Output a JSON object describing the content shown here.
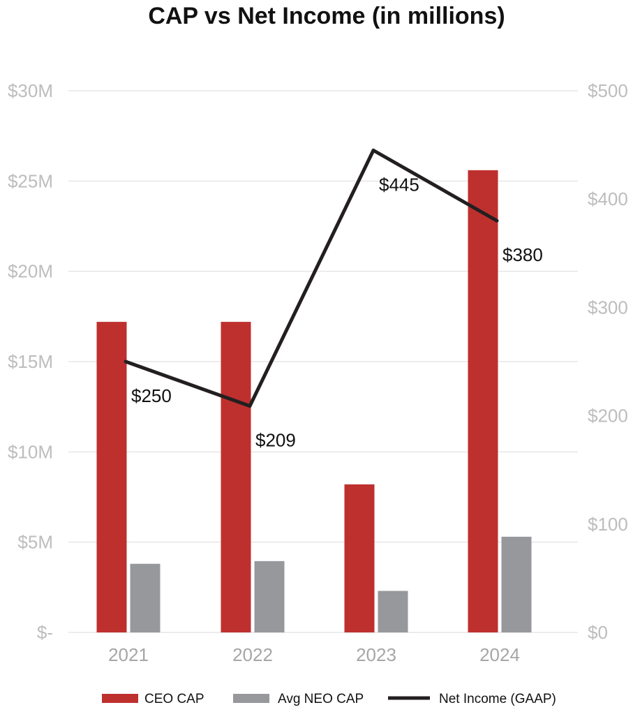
{
  "chart_data": {
    "type": "bar",
    "title": "CAP vs Net Income (in millions)",
    "categories": [
      "2021",
      "2022",
      "2023",
      "2024"
    ],
    "y_left": {
      "ticks": [
        0,
        5,
        10,
        15,
        20,
        25,
        30
      ],
      "tick_labels": [
        "$-",
        "$5M",
        "$10M",
        "$15M",
        "$20M",
        "$25M",
        "$30M"
      ],
      "ylim": [
        0,
        30
      ]
    },
    "y_right": {
      "ticks": [
        0,
        100,
        200,
        300,
        400,
        500
      ],
      "tick_labels": [
        "$0",
        "$100",
        "$200",
        "$300",
        "$400",
        "$500"
      ],
      "ylim": [
        0,
        500
      ]
    },
    "series": [
      {
        "name": "CEO CAP",
        "type": "bar",
        "axis": "left",
        "color": "#be302e",
        "values": [
          17.2,
          17.2,
          8.2,
          25.6
        ]
      },
      {
        "name": "Avg NEO CAP",
        "type": "bar",
        "axis": "left",
        "color": "#97989c",
        "values": [
          3.8,
          3.95,
          2.3,
          5.3
        ]
      },
      {
        "name": "Net Income (GAAP)",
        "type": "line",
        "axis": "right",
        "color": "#231f20",
        "values": [
          250,
          209,
          445,
          380
        ],
        "labels": [
          "$250",
          "$209",
          "$445",
          "$380"
        ]
      }
    ],
    "grid": true,
    "legend": "bottom-center"
  }
}
